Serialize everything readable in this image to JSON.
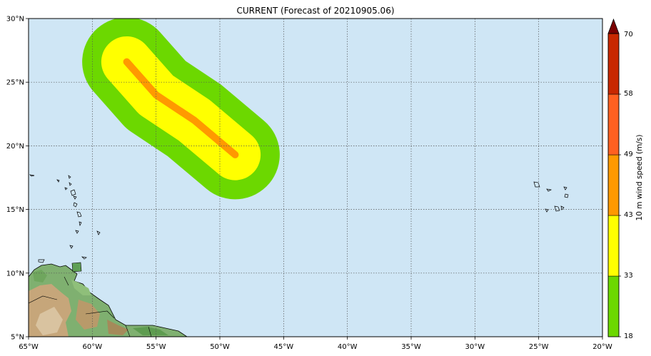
{
  "title": "CURRENT (Forecast of 20210905.06)",
  "map": {
    "lon_range": [
      -65,
      -20
    ],
    "lat_range": [
      5,
      30
    ],
    "ocean_color": "#cfe6f5",
    "gridlines": true,
    "x_ticks": [
      {
        "value": -65,
        "label": "65°W"
      },
      {
        "value": -60,
        "label": "60°W"
      },
      {
        "value": -55,
        "label": "55°W"
      },
      {
        "value": -50,
        "label": "50°W"
      },
      {
        "value": -45,
        "label": "45°W"
      },
      {
        "value": -40,
        "label": "40°W"
      },
      {
        "value": -35,
        "label": "35°W"
      },
      {
        "value": -30,
        "label": "30°W"
      },
      {
        "value": -25,
        "label": "25°W"
      },
      {
        "value": -20,
        "label": "20°W"
      }
    ],
    "y_ticks": [
      {
        "value": 5,
        "label": "5°N"
      },
      {
        "value": 10,
        "label": "10°N"
      },
      {
        "value": 15,
        "label": "15°N"
      },
      {
        "value": 20,
        "label": "20°N"
      },
      {
        "value": 25,
        "label": "25°N"
      },
      {
        "value": 30,
        "label": "30°N"
      }
    ],
    "wind_swath": {
      "track": [
        [
          -57.3,
          26.6
        ],
        [
          -55.0,
          24.0
        ],
        [
          -52.0,
          22.0
        ],
        [
          -48.8,
          19.3
        ]
      ],
      "bands": [
        {
          "min_speed": 18,
          "color": "#6cd800",
          "halfwidth_deg": 3.5
        },
        {
          "min_speed": 33,
          "color": "#ffff00",
          "halfwidth_deg": 2.0
        },
        {
          "min_speed": 43,
          "color": "#ff9900",
          "halfwidth_deg": 0.28
        }
      ]
    }
  },
  "colorbar": {
    "label": "10 m wind speed (m/s)",
    "levels": [
      {
        "value": 18,
        "color": "#6cd800"
      },
      {
        "value": 33,
        "color": "#ffff00"
      },
      {
        "value": 43,
        "color": "#ff9900"
      },
      {
        "value": 49,
        "color": "#ff6020"
      },
      {
        "value": 58,
        "color": "#c82800"
      }
    ],
    "top_label": "70",
    "extend_color": "#7a0000"
  }
}
